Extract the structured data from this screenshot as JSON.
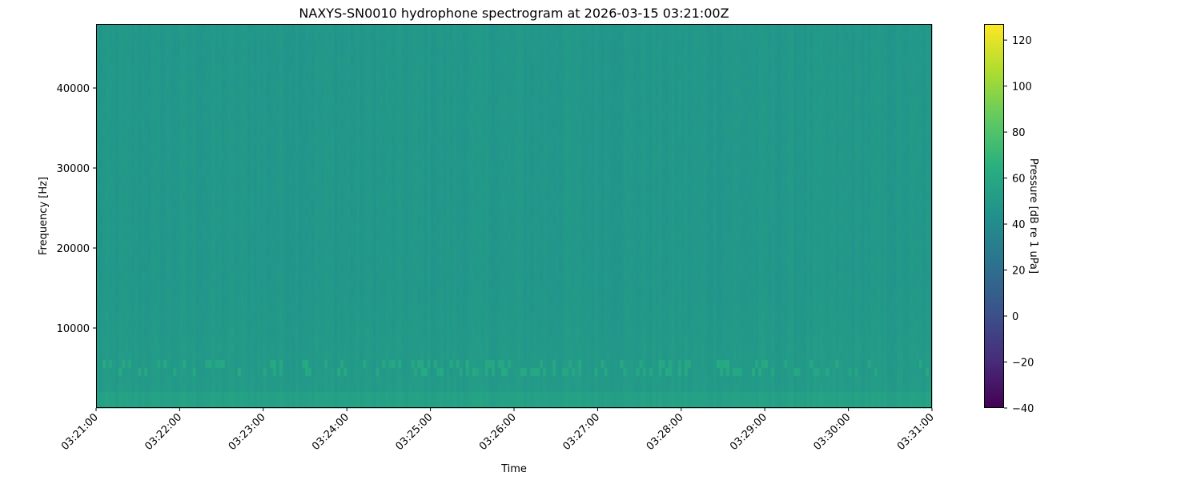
{
  "chart_data": {
    "type": "heatmap",
    "title": "NAXYS-SN0010 hydrophone spectrogram at 2026-03-15 03:21:00Z",
    "xlabel": "Time",
    "ylabel": "Frequency [Hz]",
    "x_ticks": [
      "03:21:00",
      "03:22:00",
      "03:23:00",
      "03:24:00",
      "03:25:00",
      "03:26:00",
      "03:27:00",
      "03:28:00",
      "03:29:00",
      "03:30:00",
      "03:31:00"
    ],
    "xlim": [
      "03:21:00",
      "03:31:00"
    ],
    "y_ticks": [
      10000,
      20000,
      30000,
      40000
    ],
    "ylim": [
      0,
      48000
    ],
    "colorbar": {
      "label": "Pressure [dB re 1 uPa]",
      "colormap": "viridis",
      "ticks": [
        -40,
        -20,
        0,
        20,
        40,
        60,
        80,
        100,
        120
      ],
      "range": [
        -40,
        127
      ]
    },
    "typical_level_db": 48,
    "low_frequency_level_db": 55,
    "tonal_band_hz": 5000,
    "tonal_band_level_db": 60,
    "grid": false
  }
}
